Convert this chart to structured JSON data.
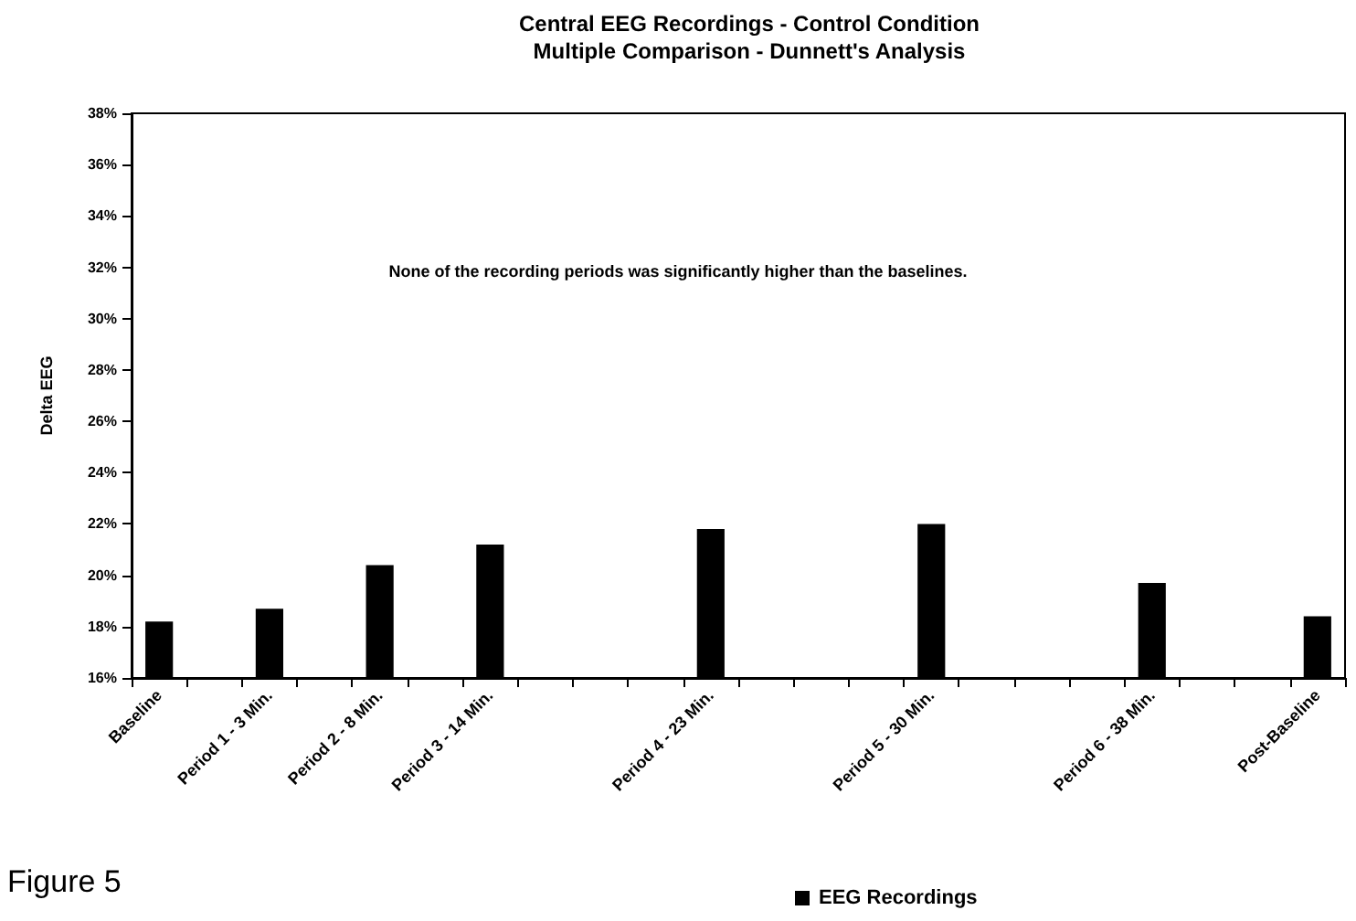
{
  "chart_data": {
    "type": "bar",
    "title": "Central EEG Recordings - Control Condition",
    "subtitle": "Multiple Comparison - Dunnett's Analysis",
    "ylabel": "Delta EEG",
    "categories": [
      "Baseline",
      null,
      "Period 1 - 3 Min.",
      null,
      "Period 2 - 8 Min.",
      null,
      "Period 3 - 14 Min.",
      null,
      null,
      null,
      "Period 4 - 23 Min.",
      null,
      null,
      null,
      "Period 5 - 30 Min.",
      null,
      null,
      null,
      "Period 6 - 38 Min.",
      null,
      null,
      "Post-Baseline"
    ],
    "series": [
      {
        "name": "EEG Recordings",
        "color": "#000000",
        "values": [
          18.2,
          null,
          18.7,
          null,
          20.4,
          null,
          21.2,
          null,
          null,
          null,
          21.8,
          null,
          null,
          null,
          22.0,
          null,
          null,
          null,
          19.7,
          null,
          null,
          18.4
        ]
      }
    ],
    "ylim": [
      16,
      38
    ],
    "yticks": [
      {
        "value": 16,
        "label": "16%"
      },
      {
        "value": 18,
        "label": "18%"
      },
      {
        "value": 20,
        "label": "20%"
      },
      {
        "value": 22,
        "label": "22%"
      },
      {
        "value": 24,
        "label": "24%"
      },
      {
        "value": 26,
        "label": "26%"
      },
      {
        "value": 28,
        "label": "28%"
      },
      {
        "value": 30,
        "label": "30%"
      },
      {
        "value": 32,
        "label": "32%"
      },
      {
        "value": 34,
        "label": "34%"
      },
      {
        "value": 36,
        "label": "36%"
      },
      {
        "value": 38,
        "label": "38%"
      }
    ],
    "annotations": [
      "None of the recording periods was significantly higher than the baselines.",
      "Figure 5"
    ],
    "legend": "bottom",
    "grid": false
  }
}
